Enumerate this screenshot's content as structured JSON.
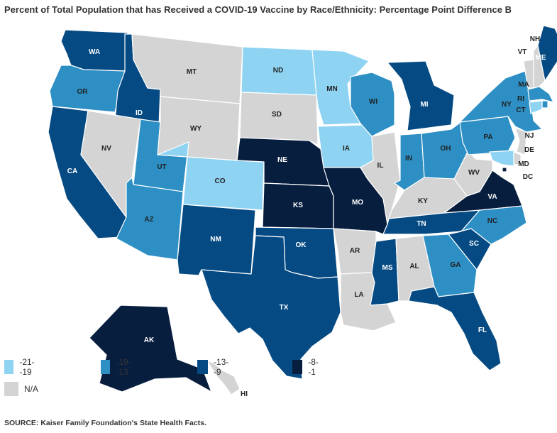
{
  "title": "Percent of Total Population that has Received a COVID-19 Vaccine by Race/Ethnicity: Percentage Point Difference B",
  "source": "SOURCE: Kaiser Family Foundation's State Health Facts.",
  "colors": {
    "c1": "#8fd3f3",
    "c2": "#2d8fc4",
    "c3": "#054a83",
    "c4": "#081e3f",
    "na": "#d4d4d4",
    "border": "#ffffff"
  },
  "legend": [
    {
      "label": "-21- -19",
      "color": "#8fd3f3"
    },
    {
      "label": "-19- -13",
      "color": "#2d8fc4"
    },
    {
      "label": "-13- -9",
      "color": "#054a83"
    },
    {
      "label": "-8- -1",
      "color": "#081e3f"
    },
    {
      "label": "N/A",
      "color": "#d4d4d4"
    }
  ],
  "states": [
    {
      "abbr": "WA",
      "category": "-13- -9"
    },
    {
      "abbr": "OR",
      "category": "-19- -13"
    },
    {
      "abbr": "CA",
      "category": "-13- -9"
    },
    {
      "abbr": "ID",
      "category": "-13- -9"
    },
    {
      "abbr": "NV",
      "category": "N/A"
    },
    {
      "abbr": "UT",
      "category": "-19- -13"
    },
    {
      "abbr": "AZ",
      "category": "-19- -13"
    },
    {
      "abbr": "MT",
      "category": "N/A"
    },
    {
      "abbr": "WY",
      "category": "N/A"
    },
    {
      "abbr": "CO",
      "category": "-21- -19"
    },
    {
      "abbr": "NM",
      "category": "-13- -9"
    },
    {
      "abbr": "ND",
      "category": "-21- -19"
    },
    {
      "abbr": "SD",
      "category": "N/A"
    },
    {
      "abbr": "NE",
      "category": "-8- -1"
    },
    {
      "abbr": "KS",
      "category": "-8- -1"
    },
    {
      "abbr": "OK",
      "category": "-13- -9"
    },
    {
      "abbr": "TX",
      "category": "-13- -9"
    },
    {
      "abbr": "MN",
      "category": "-21- -19"
    },
    {
      "abbr": "IA",
      "category": "-21- -19"
    },
    {
      "abbr": "MO",
      "category": "-8- -1"
    },
    {
      "abbr": "AR",
      "category": "N/A"
    },
    {
      "abbr": "LA",
      "category": "N/A"
    },
    {
      "abbr": "WI",
      "category": "-19- -13"
    },
    {
      "abbr": "IL",
      "category": "N/A"
    },
    {
      "abbr": "MI",
      "category": "-13- -9"
    },
    {
      "abbr": "IN",
      "category": "-19- -13"
    },
    {
      "abbr": "OH",
      "category": "-19- -13"
    },
    {
      "abbr": "KY",
      "category": "N/A"
    },
    {
      "abbr": "TN",
      "category": "-13- -9"
    },
    {
      "abbr": "MS",
      "category": "-13- -9"
    },
    {
      "abbr": "AL",
      "category": "N/A"
    },
    {
      "abbr": "GA",
      "category": "-19- -13"
    },
    {
      "abbr": "FL",
      "category": "-13- -9"
    },
    {
      "abbr": "SC",
      "category": "-13- -9"
    },
    {
      "abbr": "NC",
      "category": "-19- -13"
    },
    {
      "abbr": "VA",
      "category": "-8- -1"
    },
    {
      "abbr": "WV",
      "category": "N/A"
    },
    {
      "abbr": "PA",
      "category": "-19- -13"
    },
    {
      "abbr": "NY",
      "category": "-19- -13"
    },
    {
      "abbr": "VT",
      "category": "N/A"
    },
    {
      "abbr": "NH",
      "category": "N/A"
    },
    {
      "abbr": "ME",
      "category": "-13- -9"
    },
    {
      "abbr": "MA",
      "category": "-19- -13"
    },
    {
      "abbr": "RI",
      "category": "-19- -13"
    },
    {
      "abbr": "CT",
      "category": "-21- -19"
    },
    {
      "abbr": "NJ",
      "category": "N/A"
    },
    {
      "abbr": "DE",
      "category": "N/A"
    },
    {
      "abbr": "MD",
      "category": "-21- -19"
    },
    {
      "abbr": "DC",
      "category": "-8- -1"
    },
    {
      "abbr": "AK",
      "category": "-8- -1"
    },
    {
      "abbr": "HI",
      "category": "N/A"
    }
  ]
}
